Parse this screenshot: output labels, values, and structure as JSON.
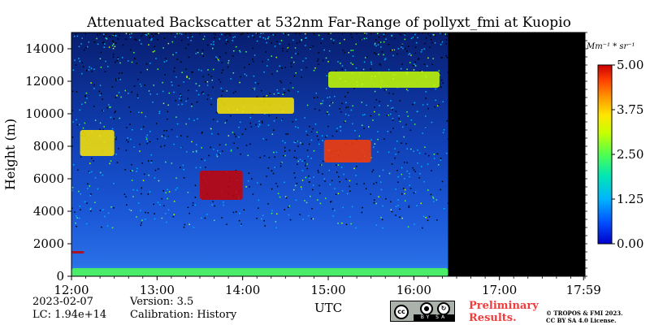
{
  "chart_data": {
    "type": "heatmap",
    "title": "Attenuated Backscatter at 532nm Far-Range of pollyxt_fmi at Kuopio",
    "xlabel": "UTC",
    "ylabel": "Height (m)",
    "x_ticks": [
      "12:00",
      "13:00",
      "14:00",
      "15:00",
      "16:00",
      "17:00",
      "17:59"
    ],
    "y_ticks": [
      0,
      2000,
      4000,
      6000,
      8000,
      10000,
      12000,
      14000
    ],
    "ylim": [
      0,
      15000
    ],
    "xlim_hours": [
      12.0,
      18.0
    ],
    "data_end_hour": 16.4,
    "colorbar": {
      "label": "Mm⁻¹ * sr⁻¹",
      "ticks": [
        "0.00",
        "1.25",
        "2.50",
        "3.75",
        "5.00"
      ],
      "range": [
        0,
        5
      ],
      "colors": [
        "#0000cc",
        "#0050ff",
        "#00b4ff",
        "#00e6b4",
        "#50ff50",
        "#c8ff00",
        "#ffe600",
        "#ff9600",
        "#ff3c00",
        "#c80000"
      ]
    },
    "features": [
      {
        "name": "boundary layer",
        "x0": 12.0,
        "x1": 16.4,
        "h0": 0,
        "h1": 500,
        "value": 2.2
      },
      {
        "name": "low cloud",
        "x0": 12.0,
        "x1": 12.15,
        "h0": 1400,
        "h1": 1550,
        "value": 4.5
      },
      {
        "name": "cloud layer",
        "x0": 13.5,
        "x1": 14.0,
        "h0": 4700,
        "h1": 6500,
        "value": 4.5
      },
      {
        "name": "cloud layer",
        "x0": 14.95,
        "x1": 15.5,
        "h0": 7000,
        "h1": 8400,
        "value": 4.0
      },
      {
        "name": "cloud layer",
        "x0": 12.1,
        "x1": 12.5,
        "h0": 7400,
        "h1": 9000,
        "value": 3.0
      },
      {
        "name": "cloud layer",
        "x0": 13.7,
        "x1": 14.6,
        "h0": 10000,
        "h1": 11000,
        "value": 3.0
      },
      {
        "name": "cloud layer",
        "x0": 15.0,
        "x1": 16.3,
        "h0": 11600,
        "h1": 12600,
        "value": 2.5
      }
    ]
  },
  "footer": {
    "date": "2023-02-07",
    "version": "Version: 3.5",
    "lc": "LC: 1.94e+14",
    "calibration": "Calibration: History",
    "preliminary_line1": "Preliminary",
    "preliminary_line2": "Results.",
    "copyright_line1": "© TROPOS & FMI 2023.",
    "copyright_line2": "CC BY SA 4.0 License.",
    "license_badge": {
      "cc": "cc",
      "by": "BY",
      "sa": "SA"
    }
  }
}
